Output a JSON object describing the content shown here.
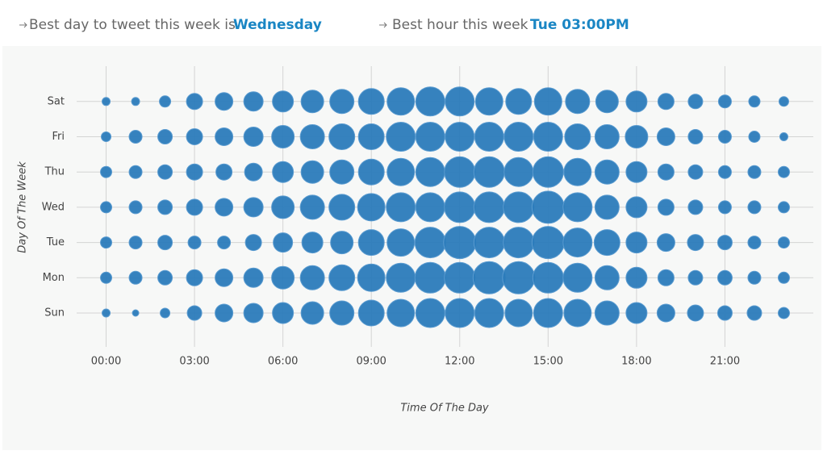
{
  "header": {
    "best_day_text": "Best day to tweet this week is",
    "best_day": "Wednesday",
    "best_hour_text": "Best hour this week",
    "best_hour": "Tue 03:00PM"
  },
  "chart_data": {
    "type": "bubble",
    "x_label": "Time Of The Day",
    "y_label": "Day Of The Week",
    "categories": [
      "Sun",
      "Mon",
      "Tue",
      "Wed",
      "Thu",
      "Fri",
      "Sat"
    ],
    "x": [
      0,
      1,
      2,
      3,
      4,
      5,
      6,
      7,
      8,
      9,
      10,
      11,
      12,
      13,
      14,
      15,
      16,
      17,
      18,
      19,
      20,
      21,
      22,
      23
    ],
    "xlim": [
      -1,
      24
    ],
    "xticks": [
      {
        "value": 0,
        "label": "00:00"
      },
      {
        "value": 3,
        "label": "03:00"
      },
      {
        "value": 6,
        "label": "06:00"
      },
      {
        "value": 9,
        "label": "09:00"
      },
      {
        "value": 12,
        "label": "12:00"
      },
      {
        "value": 15,
        "label": "15:00"
      },
      {
        "value": 18,
        "label": "18:00"
      },
      {
        "value": 21,
        "label": "21:00"
      }
    ],
    "color": "#2b7bba",
    "grid": true,
    "sizes": [
      [
        5,
        4,
        6,
        9,
        11,
        12,
        13,
        14,
        15,
        16,
        17,
        18,
        18,
        18,
        17,
        18,
        17,
        15,
        13,
        11,
        10,
        9,
        9,
        7
      ],
      [
        7,
        8,
        9,
        10,
        11,
        12,
        14,
        15,
        16,
        17,
        18,
        19,
        19,
        20,
        20,
        19,
        18,
        15,
        13,
        10,
        9,
        9,
        8,
        7
      ],
      [
        7,
        8,
        9,
        8,
        8,
        10,
        12,
        13,
        14,
        16,
        17,
        19,
        20,
        19,
        19,
        20,
        18,
        16,
        13,
        11,
        10,
        9,
        8,
        7
      ],
      [
        7,
        8,
        9,
        10,
        11,
        12,
        14,
        15,
        16,
        17,
        18,
        18,
        19,
        19,
        19,
        20,
        18,
        15,
        13,
        10,
        9,
        8,
        8,
        7
      ],
      [
        7,
        8,
        9,
        10,
        10,
        11,
        13,
        14,
        15,
        16,
        17,
        18,
        19,
        19,
        18,
        19,
        17,
        15,
        13,
        10,
        9,
        8,
        8,
        7
      ],
      [
        6,
        8,
        9,
        10,
        11,
        12,
        14,
        15,
        16,
        16,
        18,
        18,
        18,
        18,
        18,
        18,
        16,
        15,
        14,
        11,
        9,
        8,
        7,
        5
      ],
      [
        5,
        5,
        7,
        10,
        11,
        12,
        13,
        14,
        15,
        16,
        17,
        18,
        18,
        17,
        16,
        17,
        15,
        14,
        13,
        10,
        9,
        8,
        7,
        6
      ]
    ]
  }
}
